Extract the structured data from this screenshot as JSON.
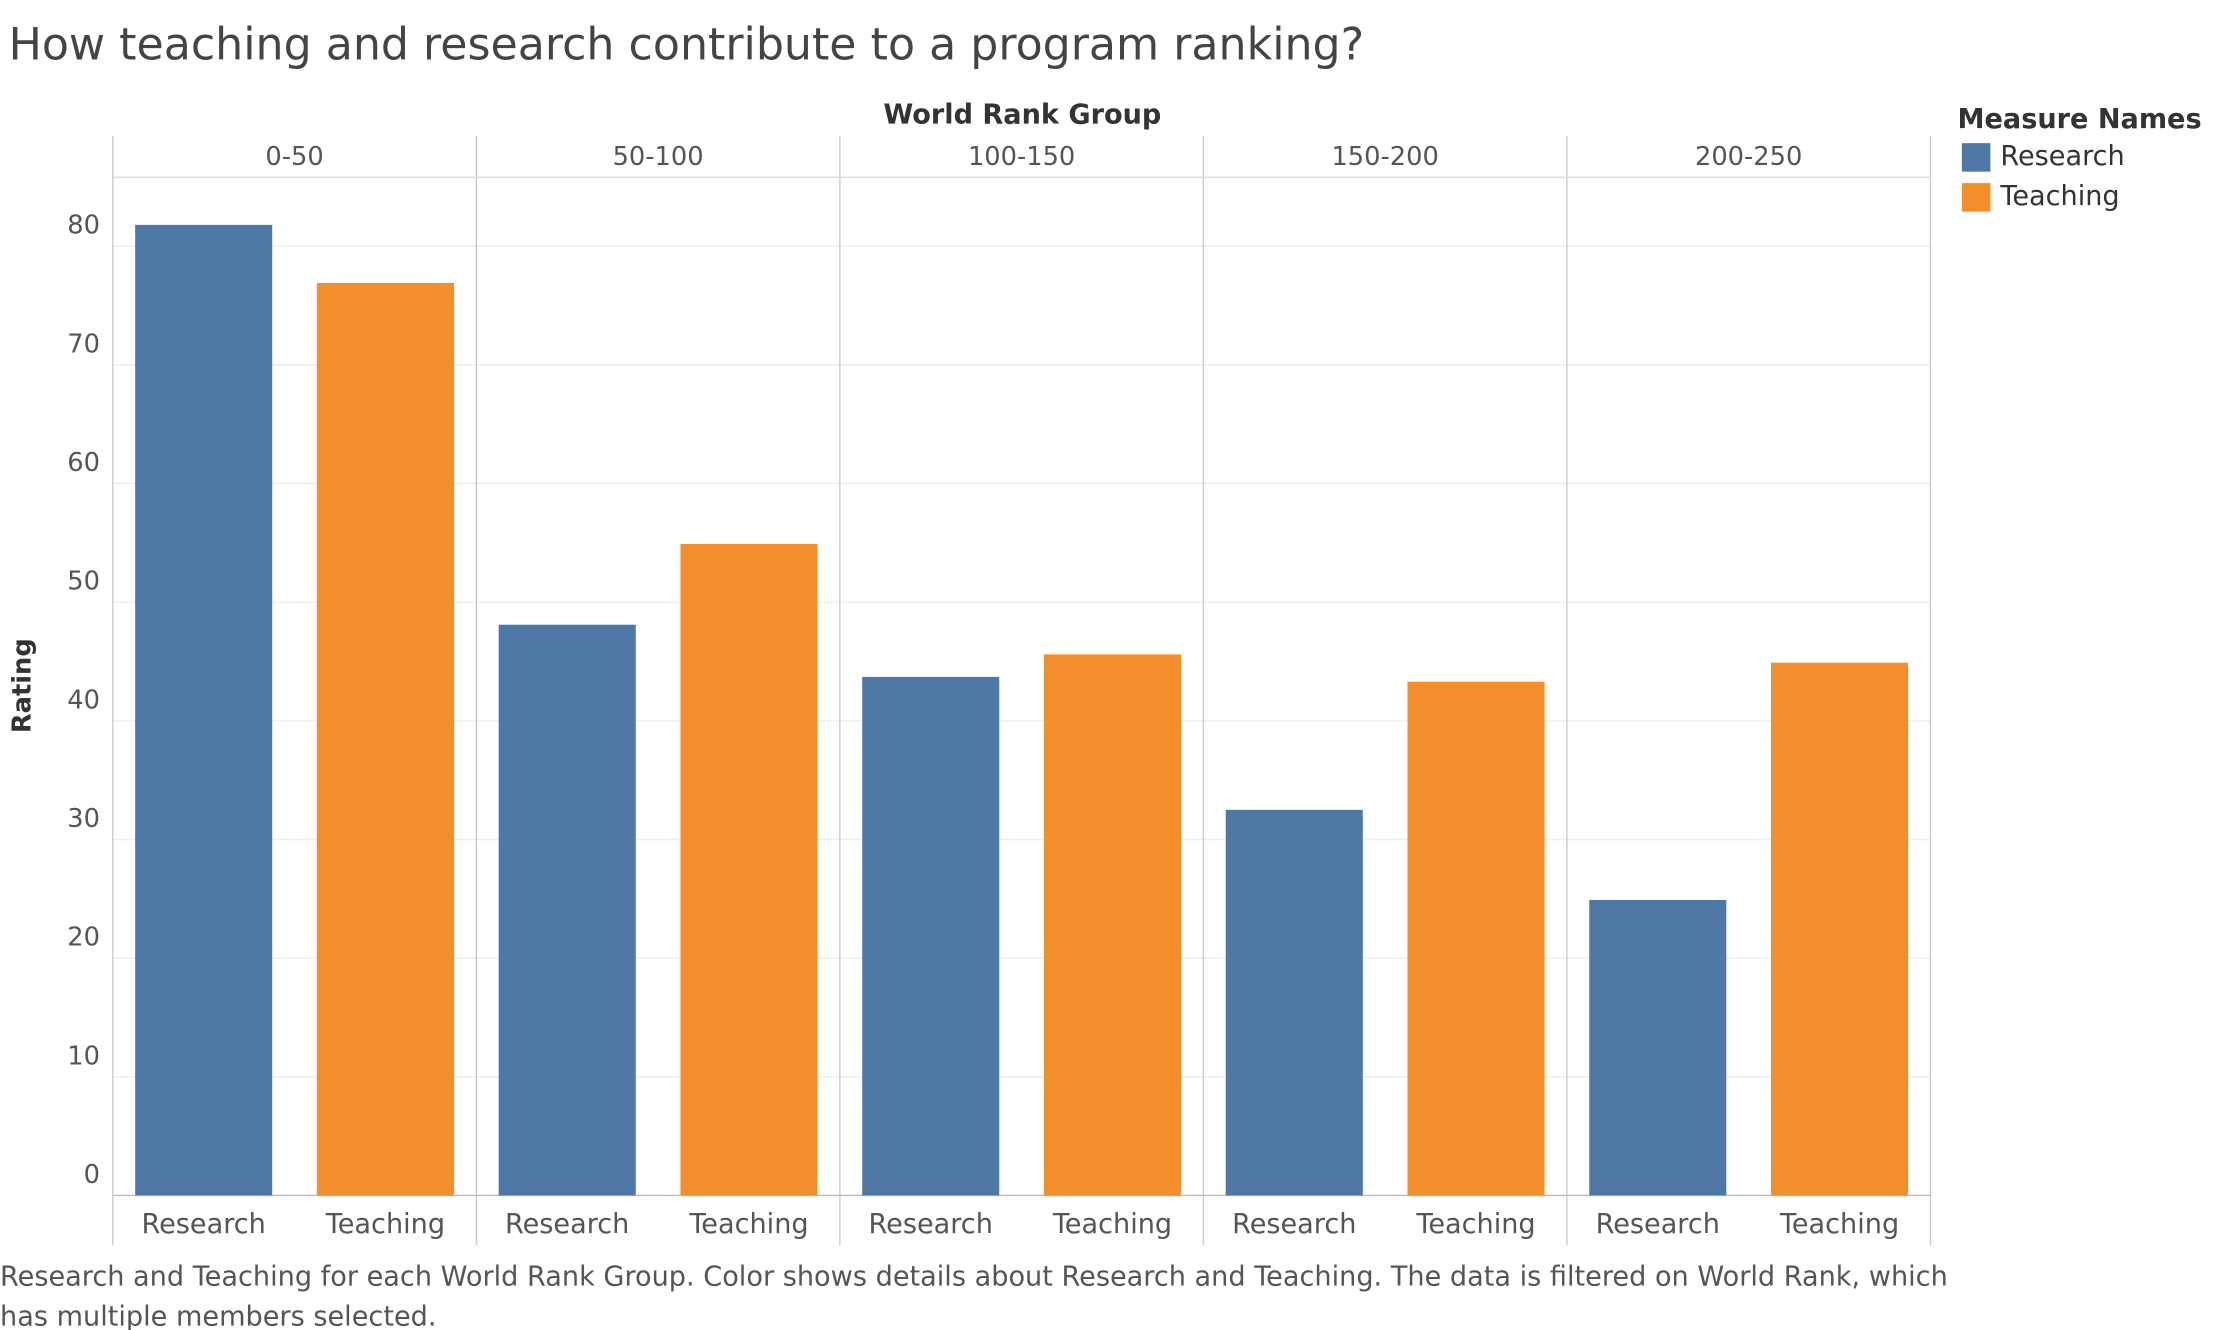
{
  "chart_data": {
    "type": "bar",
    "title": "How teaching and research contribute to a program ranking?",
    "x_label": "World Rank Group",
    "y_label": "Rating",
    "legend_title": "Measure Names",
    "caption": "Research and Teaching for each World Rank Group.  Color shows details about Research and Teaching. The data is filtered on World Rank, which has multiple members selected.",
    "categories": [
      "0-50",
      "50-100",
      "100-150",
      "150-200",
      "200-250"
    ],
    "series": [
      {
        "name": "Research",
        "color": "#4e79a7",
        "values": [
          81.8,
          48.1,
          43.7,
          32.5,
          24.9
        ]
      },
      {
        "name": "Teaching",
        "color": "#f28e2b",
        "values": [
          76.9,
          54.9,
          45.6,
          43.3,
          44.9
        ]
      }
    ],
    "ylim": [
      0,
      85.8
    ],
    "yticks": [
      0,
      10,
      20,
      30,
      40,
      50,
      60,
      70,
      80
    ],
    "grid": true,
    "legend": "right"
  }
}
